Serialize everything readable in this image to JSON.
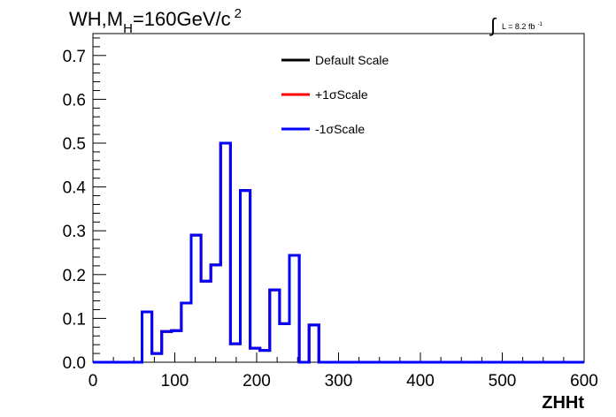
{
  "chart_data": {
    "type": "line",
    "title": "WH,M",
    "title_sub": "H",
    "title_rest": "=160GeV/c",
    "title_sup": "2",
    "lumi_symbol": "∫",
    "lumi_text": "L = 8.2 fb",
    "lumi_sup": "-1",
    "xlabel": "ZHHt",
    "ylabel": "",
    "xlim": [
      0,
      600
    ],
    "ylim": [
      0,
      0.75
    ],
    "x_ticks": [
      0,
      100,
      200,
      300,
      400,
      500,
      600
    ],
    "x_tick_labels": [
      "0",
      "100",
      "200",
      "300",
      "400",
      "500",
      "600"
    ],
    "y_ticks": [
      0,
      0.1,
      0.2,
      0.3,
      0.4,
      0.5,
      0.6,
      0.7
    ],
    "y_tick_labels": [
      "0.0",
      "0.1",
      "0.2",
      "0.3",
      "0.4",
      "0.5",
      "0.6",
      "0.7"
    ],
    "grid": false,
    "legend_position": "top-center",
    "bin_width": 12,
    "bin_edges_start": 0,
    "series": [
      {
        "name": "Default Scale",
        "color": "#000000",
        "values": [
          0,
          0,
          0,
          0,
          0,
          0.115,
          0.02,
          0.07,
          0.072,
          0.135,
          0.29,
          0.185,
          0.222,
          0.5,
          0.042,
          0.392,
          0.032,
          0.027,
          0.165,
          0.088,
          0.244,
          0,
          0.085,
          0,
          0,
          0,
          0,
          0,
          0,
          0,
          0,
          0,
          0,
          0,
          0,
          0,
          0,
          0,
          0,
          0,
          0,
          0,
          0,
          0,
          0,
          0,
          0,
          0,
          0,
          0
        ]
      },
      {
        "name": "+1σScale",
        "color": "#ff0000",
        "values": [
          0,
          0,
          0,
          0,
          0,
          0.115,
          0.02,
          0.07,
          0.072,
          0.135,
          0.29,
          0.185,
          0.222,
          0.5,
          0.042,
          0.392,
          0.032,
          0.027,
          0.165,
          0.088,
          0.244,
          0,
          0.085,
          0,
          0,
          0,
          0,
          0,
          0,
          0,
          0,
          0,
          0,
          0,
          0,
          0,
          0,
          0,
          0,
          0,
          0,
          0,
          0,
          0,
          0,
          0,
          0,
          0,
          0,
          0
        ]
      },
      {
        "name": "-1σScale",
        "color": "#0000ff",
        "values": [
          0,
          0,
          0,
          0,
          0,
          0.115,
          0.02,
          0.07,
          0.072,
          0.135,
          0.29,
          0.185,
          0.222,
          0.5,
          0.042,
          0.392,
          0.032,
          0.027,
          0.165,
          0.088,
          0.244,
          0,
          0.085,
          0,
          0,
          0,
          0,
          0,
          0,
          0,
          0,
          0,
          0,
          0,
          0,
          0,
          0,
          0,
          0,
          0,
          0,
          0,
          0,
          0,
          0,
          0,
          0,
          0,
          0,
          0
        ]
      }
    ]
  }
}
